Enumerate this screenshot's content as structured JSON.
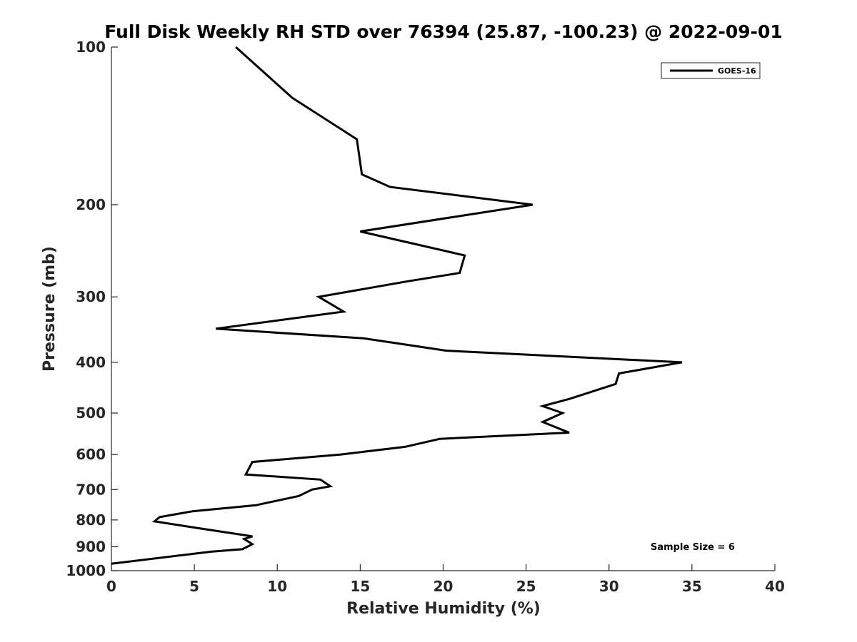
{
  "chart_data": {
    "type": "line",
    "title": "Full Disk Weekly RH STD over 76394 (25.87, -100.23) @ 2022-09-01",
    "xlabel": "Relative Humidity (%)",
    "ylabel": "Pressure (mb)",
    "xlim": [
      0,
      40
    ],
    "ylim": [
      100,
      1000
    ],
    "yscale": "log",
    "y_reversed": true,
    "xticks": [
      0,
      5,
      10,
      15,
      20,
      25,
      30,
      35,
      40
    ],
    "xtick_labels": [
      "0",
      "5",
      "10",
      "15",
      "20",
      "25",
      "30",
      "35",
      "40"
    ],
    "yticks": [
      100,
      200,
      300,
      400,
      500,
      600,
      700,
      800,
      900,
      1000
    ],
    "ytick_labels": [
      "100",
      "200",
      "300",
      "400",
      "500",
      "600",
      "700",
      "800",
      "900",
      "1000"
    ],
    "grid": false,
    "legend_position": "top-right",
    "annotation": "Sample Size = 6",
    "series": [
      {
        "name": "GOES-16",
        "color": "#000000",
        "points": [
          [
            7.5,
            100
          ],
          [
            10.9,
            125
          ],
          [
            14.8,
            150
          ],
          [
            15.1,
            175
          ],
          [
            16.8,
            185
          ],
          [
            25.4,
            200
          ],
          [
            15.0,
            225
          ],
          [
            21.3,
            250
          ],
          [
            21.0,
            270
          ],
          [
            17.9,
            280
          ],
          [
            12.5,
            300
          ],
          [
            14.0,
            320
          ],
          [
            6.3,
            345
          ],
          [
            15.2,
            360
          ],
          [
            20.2,
            380
          ],
          [
            34.4,
            400
          ],
          [
            30.6,
            420
          ],
          [
            30.4,
            440
          ],
          [
            27.6,
            470
          ],
          [
            26.0,
            485
          ],
          [
            27.2,
            500
          ],
          [
            26.0,
            520
          ],
          [
            27.6,
            545
          ],
          [
            19.8,
            560
          ],
          [
            17.7,
            580
          ],
          [
            13.8,
            600
          ],
          [
            8.5,
            620
          ],
          [
            8.1,
            655
          ],
          [
            12.6,
            670
          ],
          [
            13.2,
            690
          ],
          [
            12.1,
            700
          ],
          [
            11.3,
            720
          ],
          [
            8.7,
            750
          ],
          [
            4.9,
            770
          ],
          [
            2.9,
            790
          ],
          [
            2.6,
            805
          ],
          [
            5.3,
            830
          ],
          [
            8.5,
            860
          ],
          [
            8.0,
            870
          ],
          [
            8.5,
            890
          ],
          [
            7.9,
            910
          ],
          [
            6.0,
            920
          ],
          [
            0,
            970
          ]
        ]
      }
    ]
  }
}
